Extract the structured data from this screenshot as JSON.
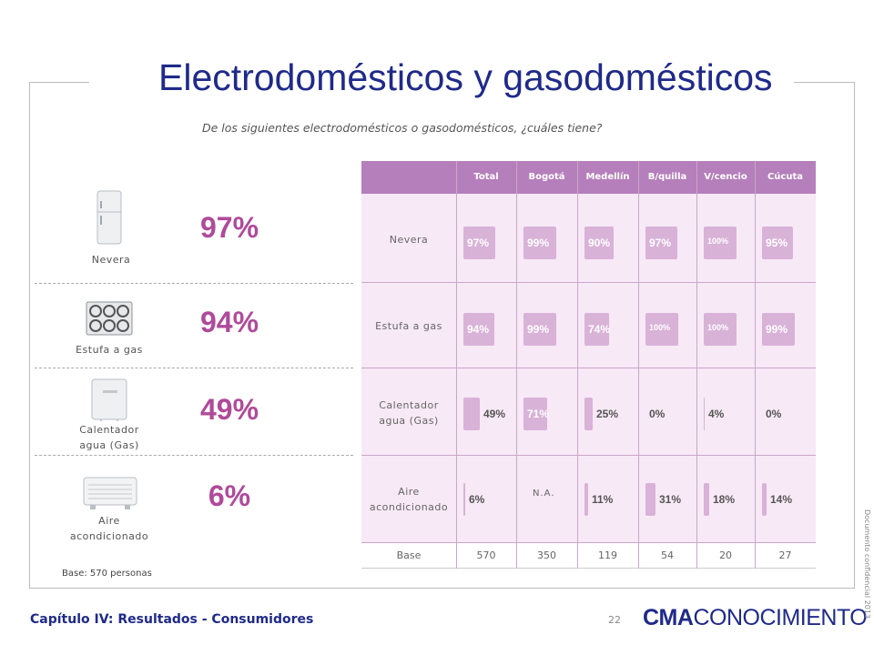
{
  "title": "Electrodomésticos y gasodomésticos",
  "subtitle": "De los siguientes electrodomésticos o gasodomésticos, ¿cuáles tiene?",
  "summary": {
    "items": [
      {
        "label_1": "Nevera",
        "label_2": "",
        "pct": "97%",
        "icon": "refrigerator-icon"
      },
      {
        "label_1": "Estufa a gas",
        "label_2": "",
        "pct": "94%",
        "icon": "gas-stove-icon"
      },
      {
        "label_1": "Calentador",
        "label_2": "agua (Gas)",
        "pct": "49%",
        "icon": "water-heater-icon"
      },
      {
        "label_1": "Aire",
        "label_2": "acondicionado",
        "pct": "6%",
        "icon": "air-conditioner-icon"
      }
    ],
    "base_note": "Base: 570 personas"
  },
  "table": {
    "columns": [
      "Total",
      "Bogotá",
      "Medellín",
      "B/quilla",
      "V/cencio",
      "Cúcuta"
    ],
    "rows": [
      {
        "label_1": "Nevera",
        "label_2": "",
        "cells": [
          "97%",
          "99%",
          "90%",
          "97%",
          "100%",
          "95%"
        ]
      },
      {
        "label_1": "Estufa a gas",
        "label_2": "",
        "cells": [
          "94%",
          "99%",
          "74%",
          "100%",
          "100%",
          "99%"
        ]
      },
      {
        "label_1": "Calentador",
        "label_2": "agua (Gas)",
        "cells": [
          "49%",
          "71%",
          "25%",
          "0%",
          "4%",
          "0%"
        ]
      },
      {
        "label_1": "Aire",
        "label_2": "acondicionado",
        "cells": [
          "6%",
          "N.A.",
          "11%",
          "31%",
          "18%",
          "14%"
        ]
      }
    ],
    "base_label": "Base",
    "base_values": [
      "570",
      "350",
      "119",
      "54",
      "20",
      "27"
    ]
  },
  "chart_data": {
    "type": "table",
    "title": "Electrodomésticos y gasodomésticos",
    "categories": [
      "Total",
      "Bogotá",
      "Medellín",
      "B/quilla",
      "V/cencio",
      "Cúcuta"
    ],
    "series": [
      {
        "name": "Nevera",
        "values": [
          97,
          99,
          90,
          97,
          100,
          95
        ]
      },
      {
        "name": "Estufa a gas",
        "values": [
          94,
          99,
          74,
          100,
          100,
          99
        ]
      },
      {
        "name": "Calentador agua (Gas)",
        "values": [
          49,
          71,
          25,
          0,
          4,
          0
        ]
      },
      {
        "name": "Aire acondicionado",
        "values": [
          6,
          null,
          11,
          31,
          18,
          14
        ]
      }
    ],
    "base": [
      570,
      350,
      119,
      54,
      20,
      27
    ],
    "summary_totals": [
      97,
      94,
      49,
      6
    ]
  },
  "colors": {
    "title": "#1f2a8a",
    "accent": "#b04a9a",
    "table_header": "#b57fbb",
    "table_body": "#f7e9f6",
    "bar": "#d9b2d8"
  },
  "footer": {
    "chapter": "Capítulo IV: Resultados - Consumidores",
    "page": "22",
    "logo_bold": "CMA",
    "logo_rest": "CONOCIMIENTO",
    "confidential": "Documento confidencial 2013."
  }
}
